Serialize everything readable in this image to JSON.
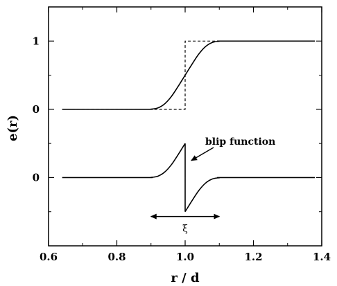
{
  "chart_data": {
    "type": "line",
    "xlabel": "r / d",
    "ylabel": "e(r)",
    "xlim": [
      0.6,
      1.4
    ],
    "x_ticks": [
      "0.6",
      "0.8",
      "1.0",
      "1.2",
      "1.4"
    ],
    "y_tick_labels": [
      {
        "label": "1",
        "value": 1
      },
      {
        "label": "0",
        "value": 0
      },
      {
        "label": "0",
        "value": -1
      }
    ],
    "ylim": [
      -2.0,
      1.5
    ],
    "series": [
      {
        "style": "solid",
        "x": [
          0.64,
          0.88,
          0.9,
          0.92,
          0.94,
          0.96,
          0.98,
          1.0,
          1.02,
          1.04,
          1.06,
          1.08,
          1.1,
          1.12,
          1.38
        ],
        "y": [
          0,
          0,
          0.003,
          0.02,
          0.08,
          0.19,
          0.34,
          0.5,
          0.66,
          0.81,
          0.92,
          0.98,
          0.997,
          1.0,
          1.0
        ]
      },
      {
        "style": "dashed",
        "x": [
          0.64,
          1.0,
          1.0,
          1.38
        ],
        "y": [
          0,
          0,
          1,
          1
        ]
      },
      {
        "style": "solid",
        "x": [
          0.64,
          0.88,
          0.9,
          0.92,
          0.94,
          0.96,
          0.98,
          1.0,
          1.0,
          1.02,
          1.04,
          1.06,
          1.08,
          1.1,
          1.12,
          1.38
        ],
        "y": [
          -1,
          -1,
          -0.997,
          -0.98,
          -0.92,
          -0.81,
          -0.66,
          -0.5,
          -1.5,
          -1.34,
          -1.19,
          -1.08,
          -1.02,
          -1.003,
          -1.0,
          -1.0
        ]
      }
    ],
    "annotations": [
      {
        "text": "blip function",
        "arrow_to": [
          1.01,
          -0.78
        ]
      },
      {
        "text": "ξ",
        "range": [
          0.9,
          1.1
        ],
        "y": -1.57
      }
    ]
  }
}
